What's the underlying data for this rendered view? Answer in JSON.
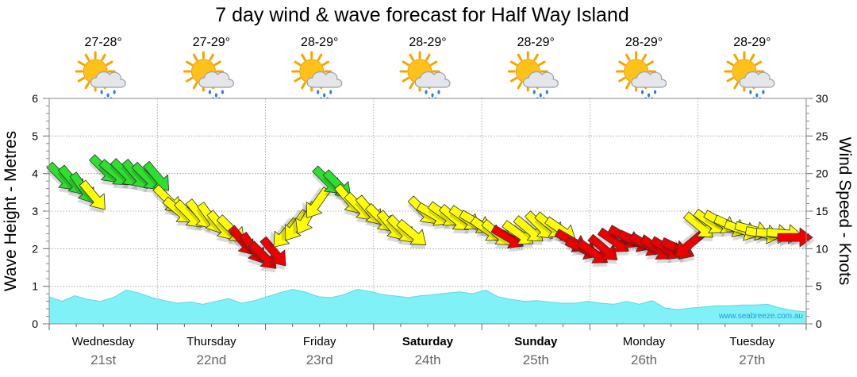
{
  "chart_data": {
    "type": "area",
    "title": "7 day wind & wave forecast for Half Way Island",
    "ylabel_left": "Wave Height - Metres",
    "ylabel_right": "Wind Speed - Knots",
    "ylim_left": [
      0,
      6
    ],
    "yticks_left": [
      "0",
      "1",
      "2",
      "3",
      "4",
      "5",
      "6"
    ],
    "ylim_right": [
      0,
      30
    ],
    "yticks_right": [
      "0",
      "5",
      "10",
      "15",
      "20",
      "25",
      "30"
    ],
    "grid": true,
    "credit": "www.seabreeze.com.au",
    "days": [
      {
        "name": "Wednesday",
        "date": "21st",
        "temp": "27-28°",
        "icon": "sun-cloud-rain-icon",
        "bold": false
      },
      {
        "name": "Thursday",
        "date": "22nd",
        "temp": "27-29°",
        "icon": "sun-cloud-rain-icon",
        "bold": false
      },
      {
        "name": "Friday",
        "date": "23rd",
        "temp": "28-29°",
        "icon": "sun-cloud-rain-icon",
        "bold": false
      },
      {
        "name": "Saturday",
        "date": "24th",
        "temp": "28-29°",
        "icon": "sun-cloud-rain-icon",
        "bold": true
      },
      {
        "name": "Sunday",
        "date": "25th",
        "temp": "28-29°",
        "icon": "sun-cloud-rain-icon",
        "bold": true
      },
      {
        "name": "Monday",
        "date": "26th",
        "temp": "28-29°",
        "icon": "sun-cloud-rain-icon",
        "bold": false
      },
      {
        "name": "Tuesday",
        "date": "27th",
        "temp": "28-29°",
        "icon": "sun-cloud-rain-icon",
        "bold": false
      }
    ],
    "wave_series": {
      "color": "#7ff1f7",
      "values": [
        0.72,
        0.6,
        0.75,
        0.65,
        0.6,
        0.7,
        0.9,
        0.82,
        0.7,
        0.62,
        0.55,
        0.58,
        0.52,
        0.6,
        0.67,
        0.55,
        0.62,
        0.72,
        0.83,
        0.92,
        0.84,
        0.72,
        0.7,
        0.78,
        0.92,
        0.86,
        0.78,
        0.74,
        0.7,
        0.75,
        0.78,
        0.82,
        0.85,
        0.8,
        0.9,
        0.72,
        0.65,
        0.6,
        0.62,
        0.58,
        0.55,
        0.55,
        0.6,
        0.55,
        0.52,
        0.6,
        0.52,
        0.62,
        0.42,
        0.38,
        0.42,
        0.45,
        0.48,
        0.48,
        0.5,
        0.5,
        0.52,
        0.42,
        0.35,
        0.32
      ]
    },
    "wind_series": {
      "colors": {
        "strong": "#2ee02e",
        "moderate": "#ffff00",
        "light": "#ee0000"
      },
      "thresholds_knots": [
        12,
        18
      ],
      "values": [
        19.5,
        19,
        18,
        17,
        20.5,
        20,
        20,
        19.8,
        19.5,
        19.5,
        16.5,
        15,
        14.5,
        14.5,
        14,
        13,
        12.5,
        11,
        10,
        9,
        9.5,
        12,
        13,
        14,
        16,
        19,
        18.5,
        16.5,
        15.5,
        15,
        14,
        13,
        12.5,
        12,
        15,
        14.5,
        14.5,
        14,
        14,
        13.5,
        12.5,
        12,
        11.5,
        12,
        12.5,
        13,
        13,
        12.5,
        11,
        10,
        9.5,
        10,
        11,
        11.5,
        11,
        10.5,
        10,
        10,
        10,
        10.5,
        13,
        13.5,
        13.5,
        13,
        12.5,
        12.5,
        12,
        12,
        12,
        11.5
      ],
      "directions_deg": [
        135,
        140,
        145,
        140,
        135,
        130,
        135,
        140,
        135,
        140,
        135,
        130,
        135,
        140,
        145,
        140,
        135,
        140,
        145,
        135,
        140,
        220,
        215,
        210,
        215,
        135,
        135,
        140,
        135,
        140,
        135,
        140,
        135,
        130,
        135,
        120,
        125,
        130,
        125,
        120,
        125,
        130,
        120,
        125,
        130,
        135,
        130,
        125,
        120,
        115,
        125,
        130,
        125,
        120,
        115,
        120,
        125,
        120,
        115,
        230,
        130,
        125,
        120,
        115,
        110,
        105,
        100,
        95,
        95,
        90
      ]
    }
  }
}
